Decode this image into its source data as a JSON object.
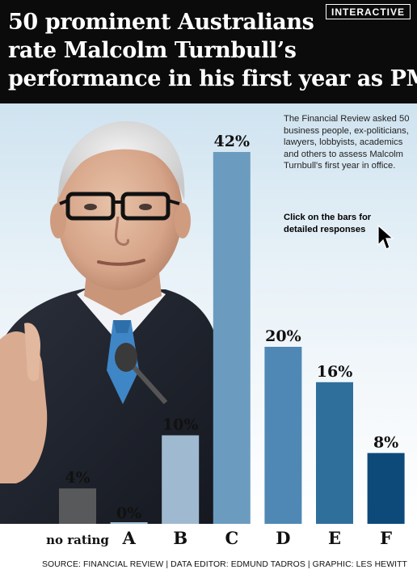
{
  "header": {
    "title_lines": [
      "50 prominent Australians",
      "rate Malcolm Turnbull’s",
      "performance in his first year as PM"
    ],
    "badge": "INTERACTIVE"
  },
  "description": "The Financial Review asked 50 business people, ex-politicians, lawyers, lobbyists, academics and others to assess Malcolm Turnbull's first year in office.",
  "click_hint": "Click on the bars for detailed responses",
  "footer": {
    "source": "SOURCE: FINANCIAL REVIEW | DATA EDITOR: EDMUND TADROS | GRAPHIC: LES HEWITT"
  },
  "icons": {
    "cursor": "mouse-pointer-icon",
    "photo": "portrait-photo"
  },
  "chart_data": {
    "type": "bar",
    "categories": [
      "no rating",
      "A",
      "B",
      "C",
      "D",
      "E",
      "F"
    ],
    "values": [
      4,
      0,
      10,
      42,
      20,
      16,
      8
    ],
    "value_labels": [
      "4%",
      "0%",
      "10%",
      "42%",
      "20%",
      "16%",
      "8%"
    ],
    "unit": "%",
    "colors": [
      "#58595b",
      "#9fbad0",
      "#9fbad0",
      "#6b9cc0",
      "#4f88b4",
      "#2f6f9c",
      "#0d4a7a"
    ],
    "ylim": [
      0,
      42
    ],
    "grid": false,
    "legend": "none",
    "title": "",
    "xlabel": "",
    "ylabel": ""
  }
}
